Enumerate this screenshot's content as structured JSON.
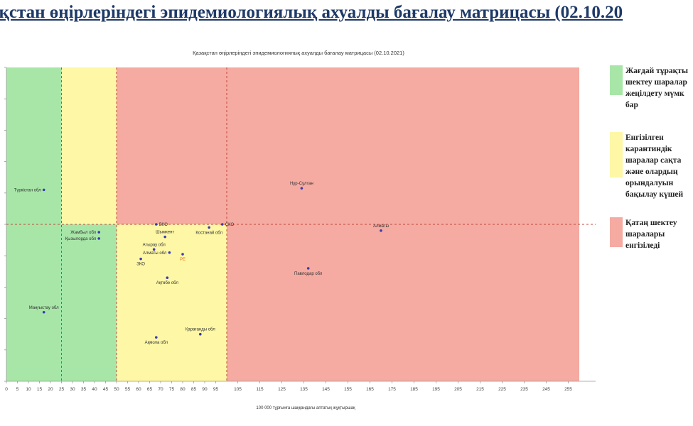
{
  "slide_title": "ақстан өңірлеріндегі эпидемиологиялық ахуалды бағалау матрицасы  (02.10.20",
  "chart_data": {
    "type": "scatter",
    "title": "Қазақстан өңірлеріндегі эпидемиологиялық ахуалды бағалау матрицасы  (02.10.2021)",
    "xlabel": "100 000 тұрғынға шаққандағы аптатық жұқтыршақ",
    "ylabel": "",
    "xlim": [
      0,
      260
    ],
    "ylim": [
      0,
      10
    ],
    "x_ticks": [
      0,
      5,
      10,
      15,
      20,
      25,
      30,
      35,
      40,
      45,
      50,
      55,
      60,
      65,
      70,
      75,
      80,
      85,
      90,
      95,
      105,
      115,
      125,
      135,
      145,
      155,
      165,
      175,
      185,
      195,
      205,
      215,
      225,
      235,
      245,
      255
    ],
    "grid": false,
    "zones": [
      {
        "name": "green",
        "color": "#a8e6a8",
        "x": [
          0,
          50
        ],
        "y": [
          0,
          10
        ]
      },
      {
        "name": "yellow",
        "color": "#fdf7a6",
        "x": [
          25,
          50
        ],
        "y": [
          5,
          10
        ]
      },
      {
        "name": "yellow",
        "color": "#fdf7a6",
        "x": [
          50,
          100
        ],
        "y": [
          0,
          5
        ]
      },
      {
        "name": "red",
        "color": "#f5aaa2",
        "x": [
          50,
          260
        ],
        "y": [
          5,
          10
        ]
      },
      {
        "name": "red",
        "color": "#f5aaa2",
        "x": [
          100,
          260
        ],
        "y": [
          0,
          5
        ]
      }
    ],
    "dashed_lines": {
      "horizontal_y": 5,
      "vertical_x": [
        25,
        50,
        100
      ]
    },
    "points": [
      {
        "label": "Түркістан обл",
        "x": 17,
        "y": 6.1,
        "label_side": "left",
        "label_color": "#333333"
      },
      {
        "label": "Нұр-Сұлтан",
        "x": 134,
        "y": 6.15,
        "label_side": "above",
        "label_color": "#333333"
      },
      {
        "label": "Алматы",
        "x": 170,
        "y": 4.8,
        "label_side": "above",
        "label_color": "#333333"
      },
      {
        "label": "Жамбыл обл",
        "x": 42,
        "y": 4.75,
        "label_side": "left",
        "label_color": "#333333"
      },
      {
        "label": "Қызылорда обл",
        "x": 42,
        "y": 4.55,
        "label_side": "left",
        "label_color": "#333333"
      },
      {
        "label": "Маңғыстау обл",
        "x": 17,
        "y": 2.2,
        "label_side": "above",
        "label_color": "#333333"
      },
      {
        "label": "ВКО",
        "x": 68,
        "y": 5.0,
        "label_side": "right",
        "label_color": "#333333"
      },
      {
        "label": "СКО",
        "x": 98,
        "y": 5.0,
        "label_side": "right",
        "label_color": "#333333"
      },
      {
        "label": "Шымкент",
        "x": 72,
        "y": 4.6,
        "label_side": "above",
        "label_color": "#333333"
      },
      {
        "label": "Костанай обл",
        "x": 92,
        "y": 4.9,
        "label_side": "below",
        "label_color": "#333333"
      },
      {
        "label": "Атырау обл",
        "x": 67,
        "y": 4.2,
        "label_side": "above",
        "label_color": "#333333"
      },
      {
        "label": "Алматы обл",
        "x": 74,
        "y": 4.1,
        "label_side": "left",
        "label_color": "#333333"
      },
      {
        "label": "ЗКО",
        "x": 61,
        "y": 3.9,
        "label_side": "below",
        "label_color": "#333333"
      },
      {
        "label": "РЕ",
        "x": 80,
        "y": 4.05,
        "label_side": "below",
        "label_color": "#e07820"
      },
      {
        "label": "Ақтөбе обл",
        "x": 73,
        "y": 3.3,
        "label_side": "below",
        "label_color": "#333333"
      },
      {
        "label": "Павлодар обл",
        "x": 137,
        "y": 3.6,
        "label_side": "below",
        "label_color": "#333333"
      },
      {
        "label": "Қарағанды обл",
        "x": 88,
        "y": 1.5,
        "label_side": "above",
        "label_color": "#333333"
      },
      {
        "label": "Ақмола обл",
        "x": 68,
        "y": 1.4,
        "label_side": "below",
        "label_color": "#333333"
      }
    ]
  },
  "legend": [
    {
      "color": "#a8e6a8",
      "text": "Жағдай тұрақты\nшектеу шаралар\nжеңілдету мүмк\nбар"
    },
    {
      "color": "#fdf7a6",
      "text": "Енгізілген\nкарантиндік\nшаралар сақта\nжәне олардың\nорындалуын\nбақылау күшей"
    },
    {
      "color": "#f5aaa2",
      "text": "Қатаң шектеу\nшаралары\nенгізіледі"
    }
  ]
}
